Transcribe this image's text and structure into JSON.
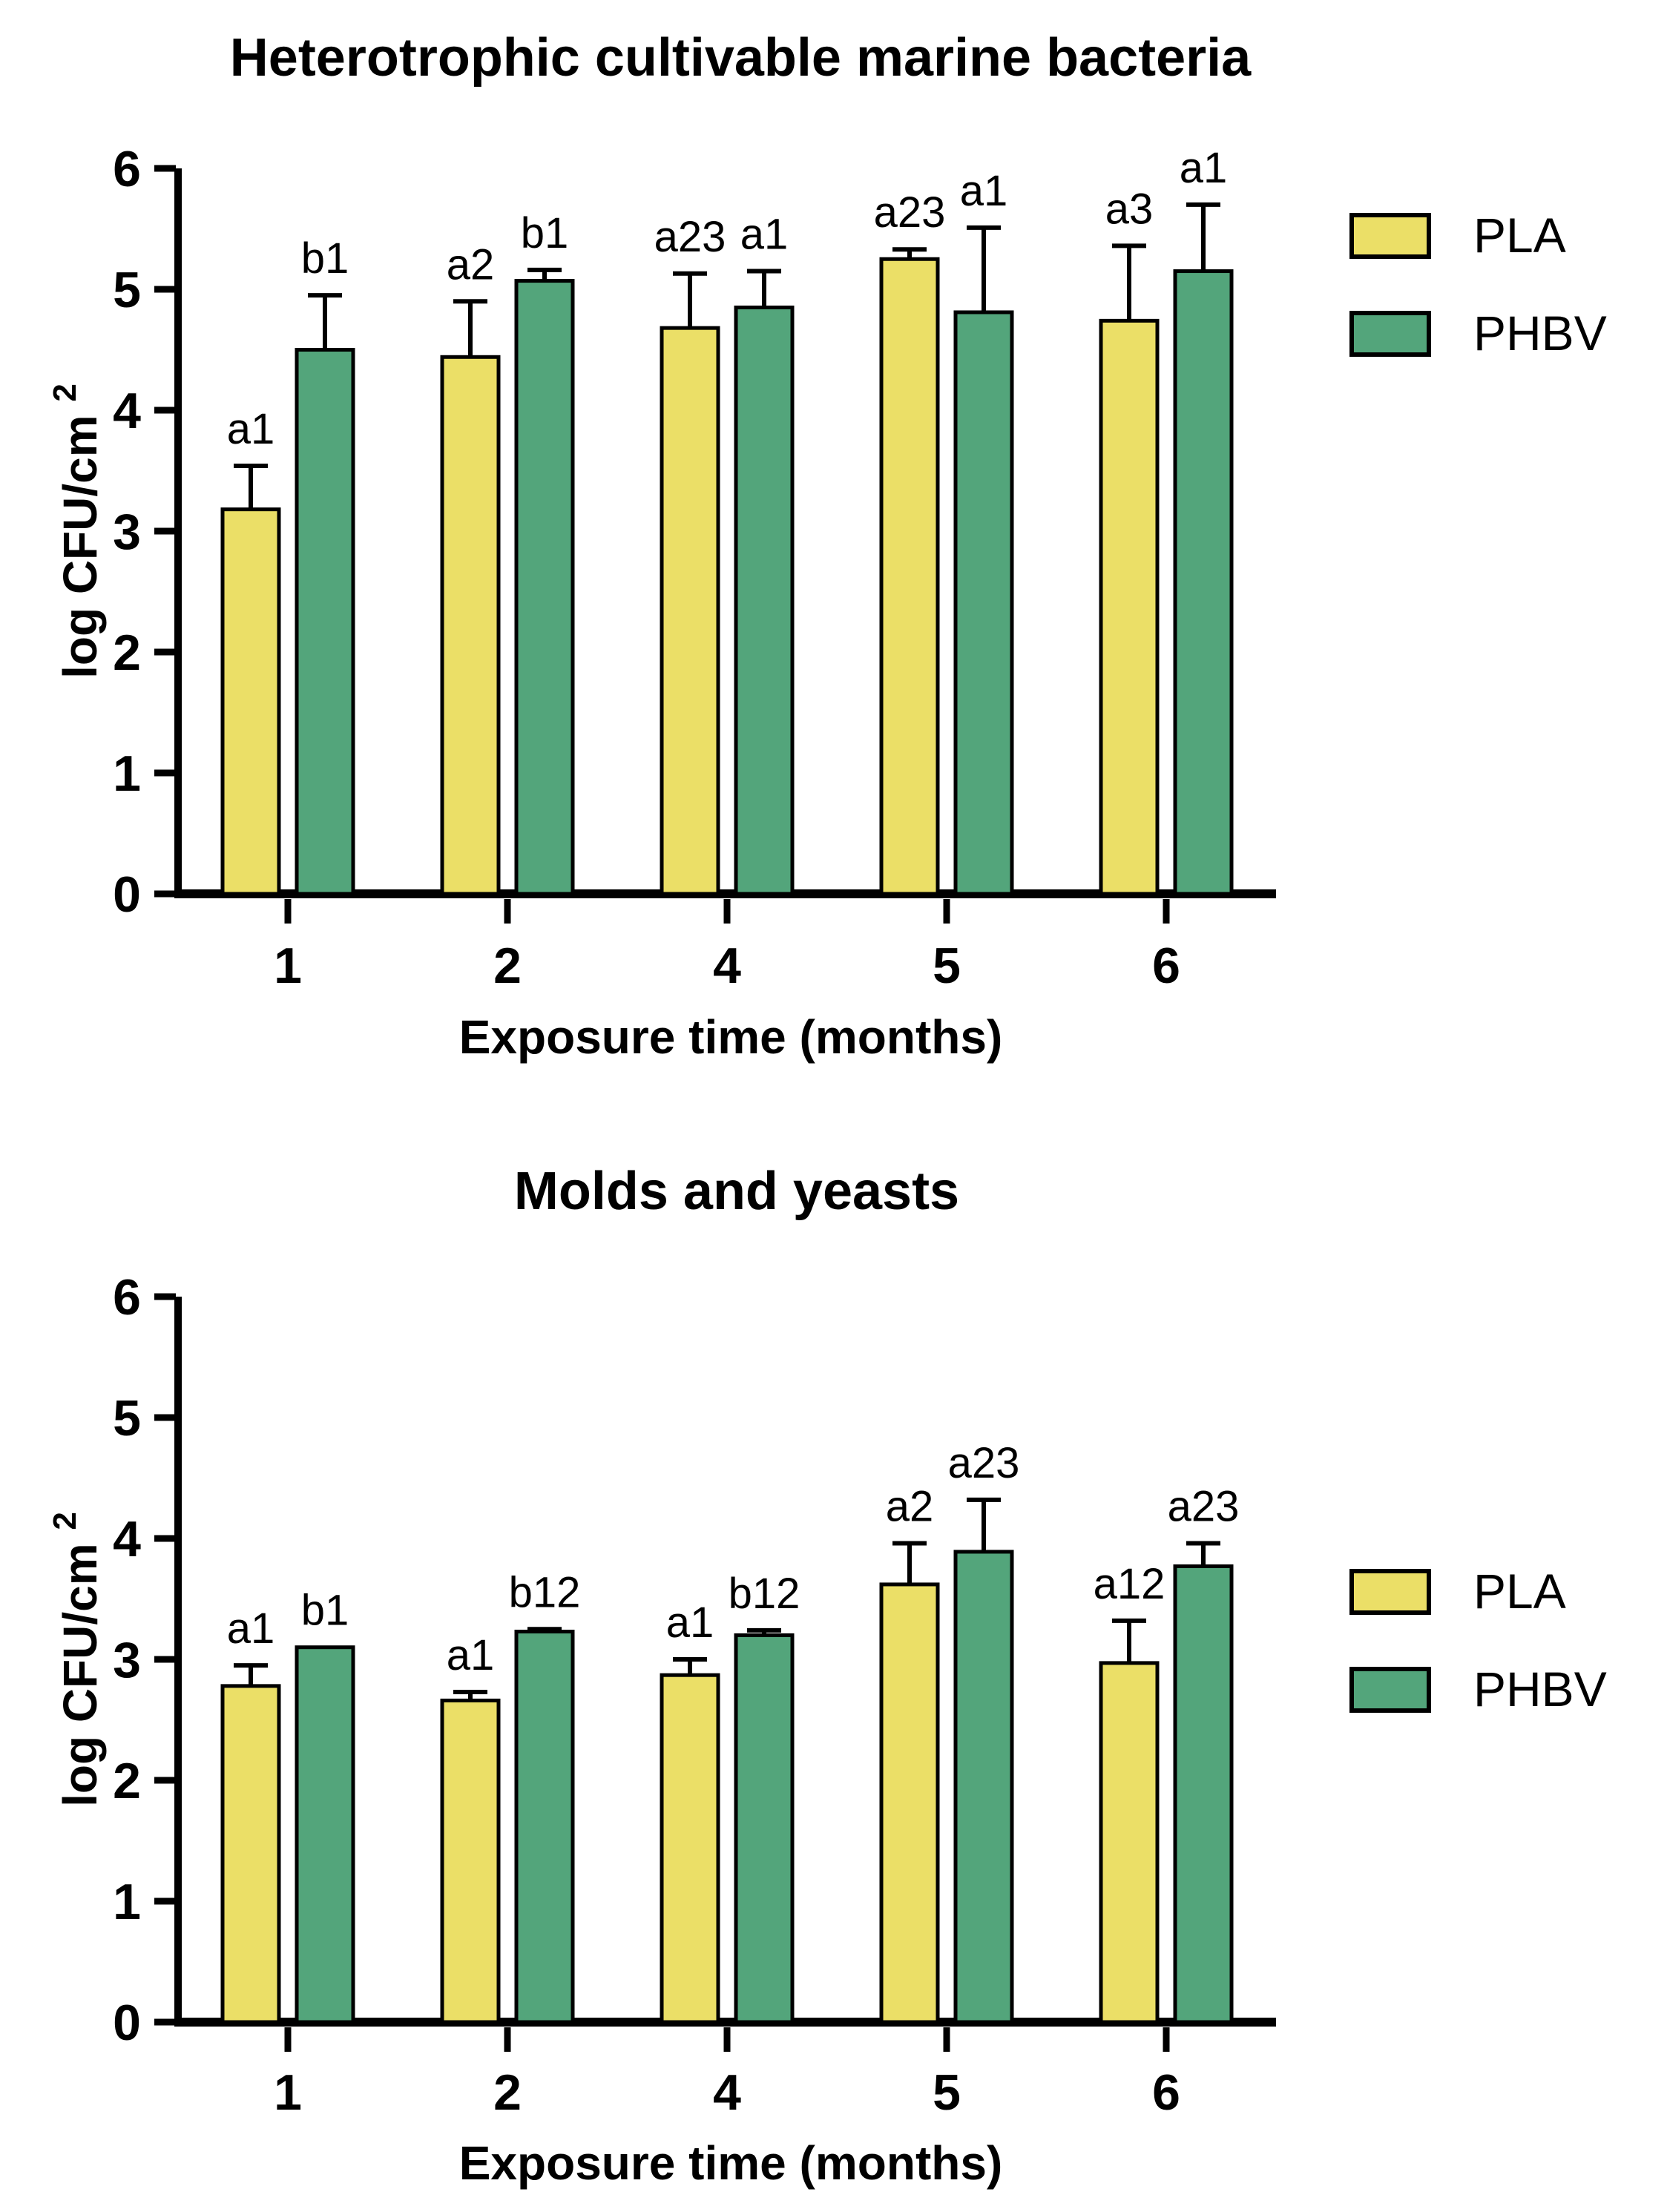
{
  "figure": {
    "background": "#ffffff"
  },
  "colors": {
    "pla": "#EBDF67",
    "phbv": "#53A57B",
    "outline": "#000000",
    "text": "#000000"
  },
  "legend": {
    "items": [
      {
        "label": "PLA",
        "color_key": "pla"
      },
      {
        "label": "PHBV",
        "color_key": "phbv"
      }
    ]
  },
  "chart_data": [
    {
      "type": "bar",
      "title": "Heterotrophic cultivable marine bacteria",
      "xlabel": "Exposure time (months)",
      "ylabel": "log CFU/cm",
      "ylabel_superscript": "2",
      "ylim": [
        0,
        6
      ],
      "yticks": [
        0,
        1,
        2,
        3,
        4,
        5,
        6
      ],
      "categories": [
        "1",
        "2",
        "4",
        "5",
        "6"
      ],
      "grid": false,
      "legend_position": "right",
      "error_bars": "upper",
      "series": [
        {
          "name": "PLA",
          "color_key": "pla",
          "values": [
            3.18,
            4.44,
            4.68,
            5.25,
            4.74
          ],
          "errors_plus": [
            0.36,
            0.46,
            0.45,
            0.08,
            0.62
          ],
          "point_labels": [
            "a1",
            "a2",
            "a23",
            "a23",
            "a3"
          ]
        },
        {
          "name": "PHBV",
          "color_key": "phbv",
          "values": [
            4.5,
            5.07,
            4.85,
            4.81,
            5.15
          ],
          "errors_plus": [
            0.45,
            0.09,
            0.3,
            0.7,
            0.55
          ],
          "point_labels": [
            "b1",
            "b1",
            "a1",
            "a1",
            "a1"
          ]
        }
      ]
    },
    {
      "type": "bar",
      "title": "Molds and yeasts",
      "xlabel": "Exposure time (months)",
      "ylabel": "log CFU/cm",
      "ylabel_superscript": "2",
      "ylim": [
        0,
        6
      ],
      "yticks": [
        0,
        1,
        2,
        3,
        4,
        5,
        6
      ],
      "categories": [
        "1",
        "2",
        "4",
        "5",
        "6"
      ],
      "grid": false,
      "legend_position": "right",
      "error_bars": "upper",
      "series": [
        {
          "name": "PLA",
          "color_key": "pla",
          "values": [
            2.78,
            2.66,
            2.87,
            3.62,
            2.97
          ],
          "errors_plus": [
            0.17,
            0.07,
            0.13,
            0.34,
            0.35
          ],
          "point_labels": [
            "a1",
            "a1",
            "a1",
            "a2",
            "a12"
          ]
        },
        {
          "name": "PHBV",
          "color_key": "phbv",
          "values": [
            3.1,
            3.23,
            3.2,
            3.89,
            3.77
          ],
          "errors_plus": [
            0,
            0.02,
            0.04,
            0.43,
            0.19
          ],
          "point_labels": [
            "b1",
            "b12",
            "b12",
            "a23",
            "a23"
          ]
        }
      ]
    }
  ]
}
